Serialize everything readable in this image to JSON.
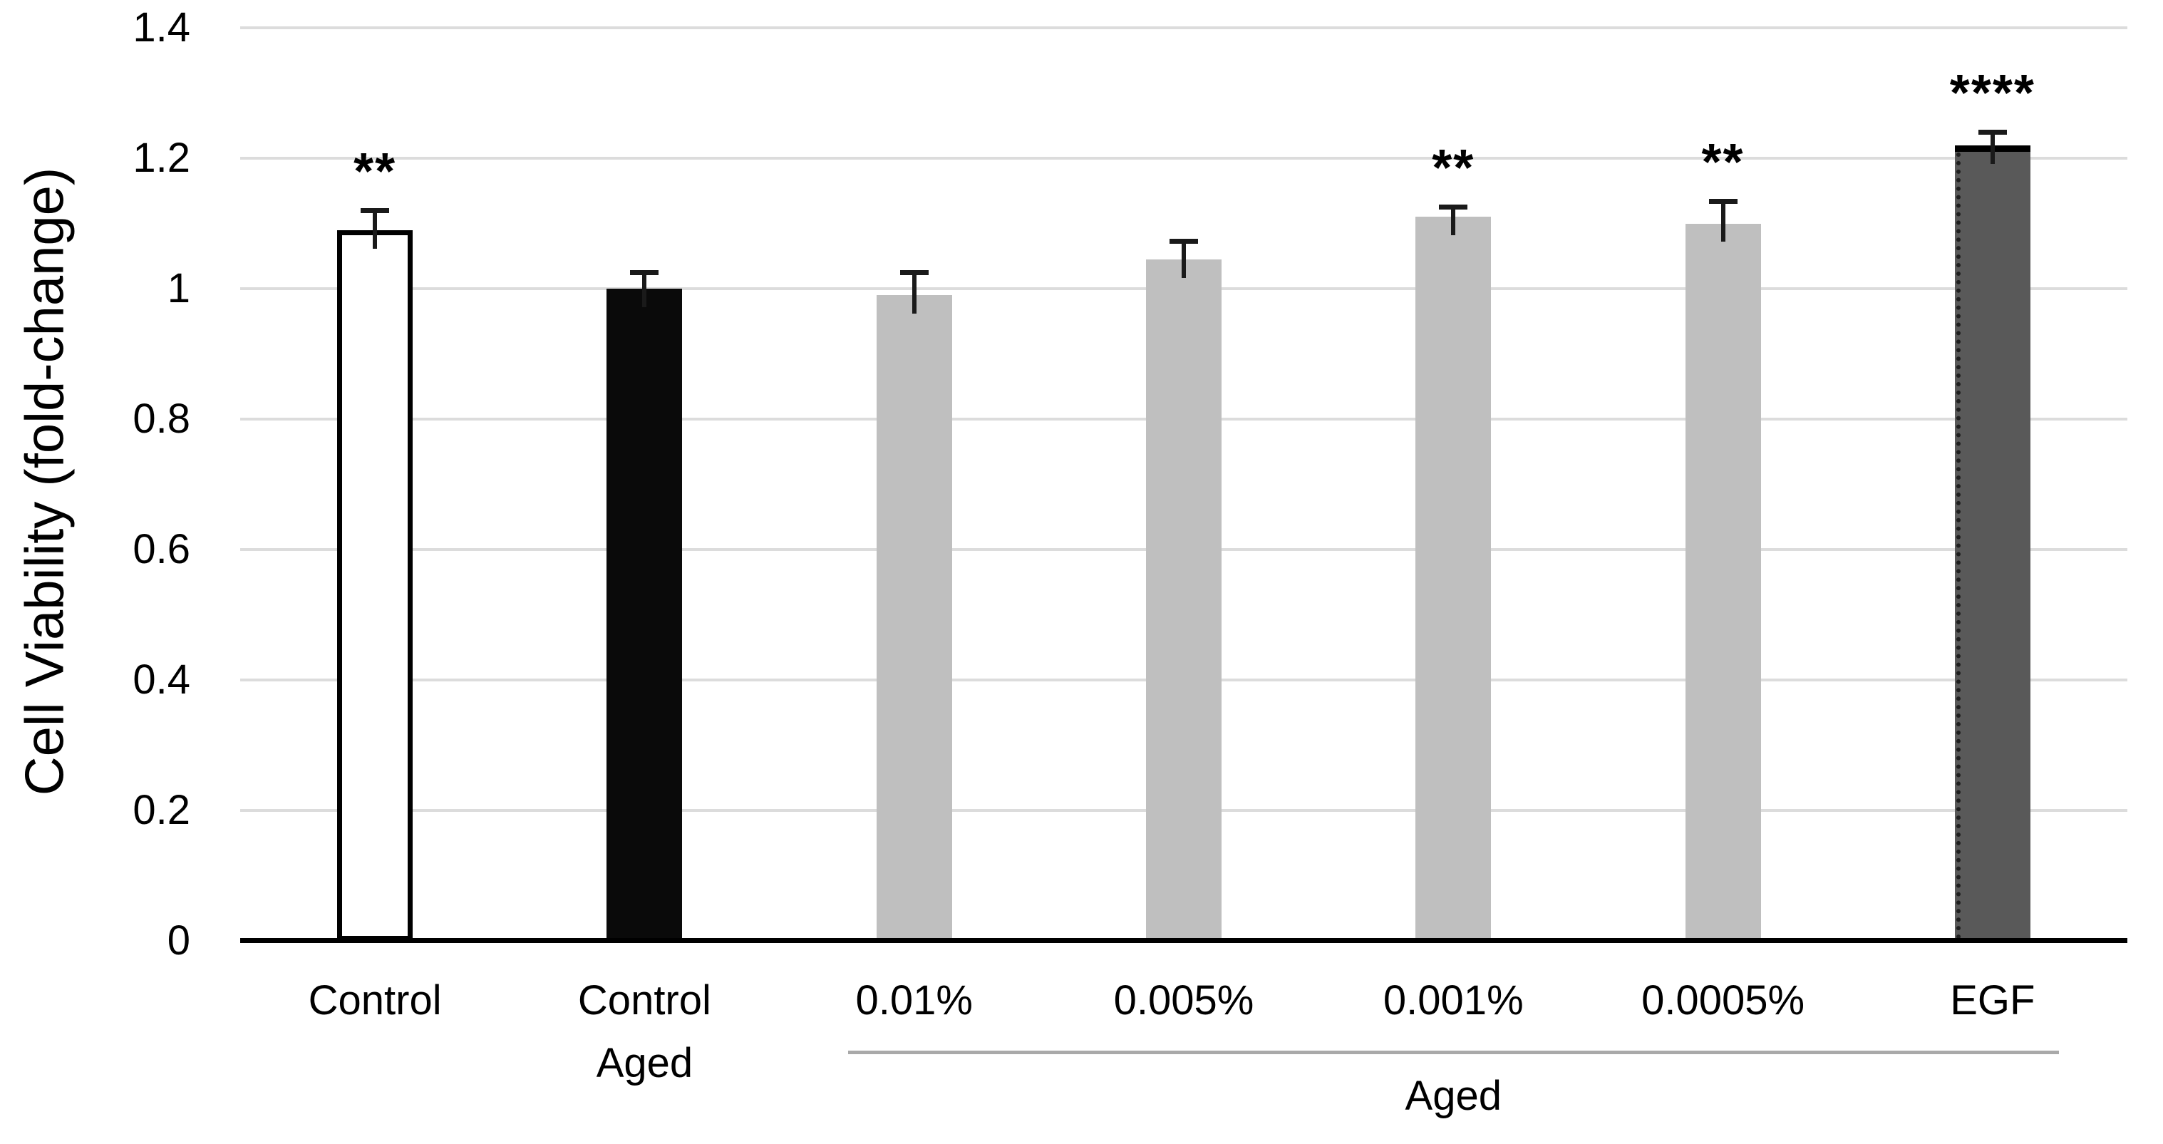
{
  "chart_data": {
    "type": "bar",
    "title": "",
    "ylabel": "Cell Viability (fold-change)",
    "xlabel": "",
    "ylim": [
      0,
      1.4
    ],
    "ytick_labels": [
      "0",
      "0.2",
      "0.4",
      "0.6",
      "0.8",
      "1",
      "1.2",
      "1.4"
    ],
    "ytick_values": [
      0,
      0.2,
      0.4,
      0.6,
      0.8,
      1,
      1.2,
      1.4
    ],
    "grid": true,
    "legend": "none",
    "categories": [
      "Control",
      "Control\nAged",
      "0.01%",
      "0.005%",
      "0.001%",
      "0.0005%",
      "EGF"
    ],
    "values": [
      1.09,
      1.0,
      0.99,
      1.045,
      1.11,
      1.1,
      1.22
    ],
    "errors_plus": [
      0.03,
      0.025,
      0.035,
      0.028,
      0.016,
      0.034,
      0.02
    ],
    "significance": [
      "**",
      "",
      "",
      "",
      "**",
      "**",
      "****"
    ],
    "group_bracket": {
      "label": "Aged",
      "from_index": 2,
      "to_index": 6
    },
    "bar_styles": [
      {
        "fill": "#ffffff",
        "border": "#000000"
      },
      {
        "fill": "#0a0a0a"
      },
      {
        "fill": "#bfbfbf"
      },
      {
        "fill": "#bfbfbf"
      },
      {
        "fill": "#bfbfbf"
      },
      {
        "fill": "#bfbfbf"
      },
      {
        "fill": "#595959",
        "top_border": "#000000",
        "dotted_left": true
      }
    ]
  },
  "colors": {
    "background": "#ffffff",
    "gridline": "#dcdcdc",
    "axis_line": "#000000",
    "error_bar": "#1a1a1a",
    "bracket_line": "#a9a9a9",
    "text": "#000000"
  }
}
